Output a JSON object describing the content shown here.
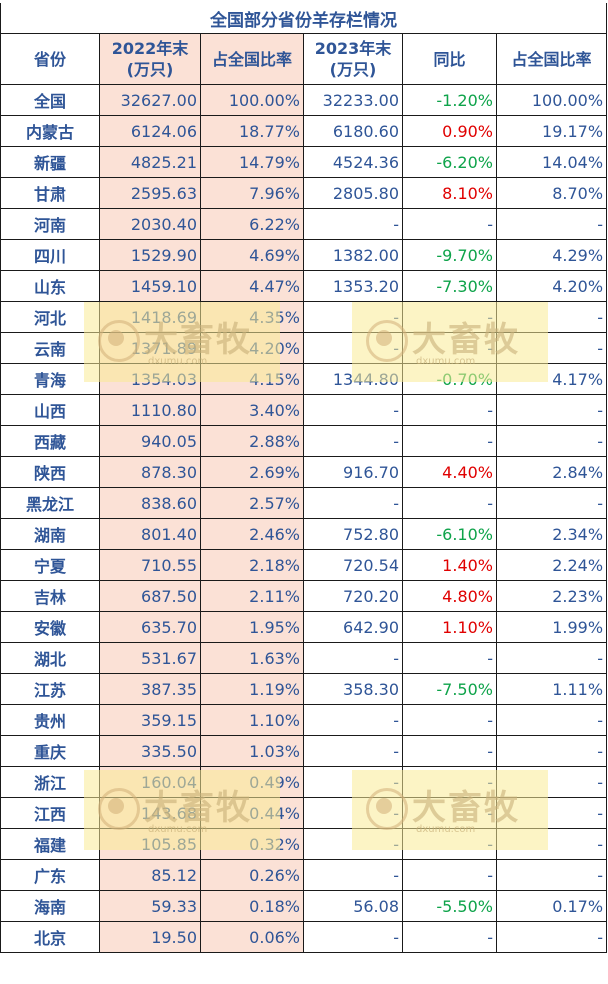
{
  "title": "全国部分省份羊存栏情况",
  "headers": [
    "省份",
    "2022年末\n(万只)",
    "占全国比率",
    "2023年末\n(万只)",
    "同比",
    "占全国比率"
  ],
  "rows": [
    {
      "province": "全国",
      "y2022": "32627.00",
      "share2022": "100.00%",
      "y2023": "32233.00",
      "yoy": "-1.20%",
      "share2023": "100.00%"
    },
    {
      "province": "内蒙古",
      "y2022": "6124.06",
      "share2022": "18.77%",
      "y2023": "6180.60",
      "yoy": "0.90%",
      "share2023": "19.17%"
    },
    {
      "province": "新疆",
      "y2022": "4825.21",
      "share2022": "14.79%",
      "y2023": "4524.36",
      "yoy": "-6.20%",
      "share2023": "14.04%"
    },
    {
      "province": "甘肃",
      "y2022": "2595.63",
      "share2022": "7.96%",
      "y2023": "2805.80",
      "yoy": "8.10%",
      "share2023": "8.70%"
    },
    {
      "province": "河南",
      "y2022": "2030.40",
      "share2022": "6.22%",
      "y2023": "-",
      "yoy": "-",
      "share2023": "-"
    },
    {
      "province": "四川",
      "y2022": "1529.90",
      "share2022": "4.69%",
      "y2023": "1382.00",
      "yoy": "-9.70%",
      "share2023": "4.29%"
    },
    {
      "province": "山东",
      "y2022": "1459.10",
      "share2022": "4.47%",
      "y2023": "1353.20",
      "yoy": "-7.30%",
      "share2023": "4.20%"
    },
    {
      "province": "河北",
      "y2022": "1418.69",
      "share2022": "4.35%",
      "y2023": "-",
      "yoy": "-",
      "share2023": "-"
    },
    {
      "province": "云南",
      "y2022": "1371.89",
      "share2022": "4.20%",
      "y2023": "-",
      "yoy": "-",
      "share2023": "-"
    },
    {
      "province": "青海",
      "y2022": "1354.03",
      "share2022": "4.15%",
      "y2023": "1344.80",
      "yoy": "-0.70%",
      "share2023": "4.17%"
    },
    {
      "province": "山西",
      "y2022": "1110.80",
      "share2022": "3.40%",
      "y2023": "-",
      "yoy": "-",
      "share2023": "-"
    },
    {
      "province": "西藏",
      "y2022": "940.05",
      "share2022": "2.88%",
      "y2023": "-",
      "yoy": "-",
      "share2023": "-"
    },
    {
      "province": "陕西",
      "y2022": "878.30",
      "share2022": "2.69%",
      "y2023": "916.70",
      "yoy": "4.40%",
      "share2023": "2.84%"
    },
    {
      "province": "黑龙江",
      "y2022": "838.60",
      "share2022": "2.57%",
      "y2023": "-",
      "yoy": "-",
      "share2023": "-"
    },
    {
      "province": "湖南",
      "y2022": "801.40",
      "share2022": "2.46%",
      "y2023": "752.80",
      "yoy": "-6.10%",
      "share2023": "2.34%"
    },
    {
      "province": "宁夏",
      "y2022": "710.55",
      "share2022": "2.18%",
      "y2023": "720.54",
      "yoy": "1.40%",
      "share2023": "2.24%"
    },
    {
      "province": "吉林",
      "y2022": "687.50",
      "share2022": "2.11%",
      "y2023": "720.20",
      "yoy": "4.80%",
      "share2023": "2.23%"
    },
    {
      "province": "安徽",
      "y2022": "635.70",
      "share2022": "1.95%",
      "y2023": "642.90",
      "yoy": "1.10%",
      "share2023": "1.99%"
    },
    {
      "province": "湖北",
      "y2022": "531.67",
      "share2022": "1.63%",
      "y2023": "-",
      "yoy": "-",
      "share2023": "-"
    },
    {
      "province": "江苏",
      "y2022": "387.35",
      "share2022": "1.19%",
      "y2023": "358.30",
      "yoy": "-7.50%",
      "share2023": "1.11%"
    },
    {
      "province": "贵州",
      "y2022": "359.15",
      "share2022": "1.10%",
      "y2023": "-",
      "yoy": "-",
      "share2023": "-"
    },
    {
      "province": "重庆",
      "y2022": "335.50",
      "share2022": "1.03%",
      "y2023": "-",
      "yoy": "-",
      "share2023": "-"
    },
    {
      "province": "浙江",
      "y2022": "160.04",
      "share2022": "0.49%",
      "y2023": "-",
      "yoy": "-",
      "share2023": "-"
    },
    {
      "province": "江西",
      "y2022": "143.68",
      "share2022": "0.44%",
      "y2023": "-",
      "yoy": "-",
      "share2023": "-"
    },
    {
      "province": "福建",
      "y2022": "105.85",
      "share2022": "0.32%",
      "y2023": "-",
      "yoy": "-",
      "share2023": "-"
    },
    {
      "province": "广东",
      "y2022": "85.12",
      "share2022": "0.26%",
      "y2023": "-",
      "yoy": "-",
      "share2023": "-"
    },
    {
      "province": "海南",
      "y2022": "59.33",
      "share2022": "0.18%",
      "y2023": "56.08",
      "yoy": "-5.50%",
      "share2023": "0.17%"
    },
    {
      "province": "北京",
      "y2022": "19.50",
      "share2022": "0.06%",
      "y2023": "-",
      "yoy": "-",
      "share2023": "-"
    }
  ],
  "watermark": {
    "brand": "大畜牧",
    "site": "dxumu.com"
  },
  "colors": {
    "text": "#2f5597",
    "peach": "#fbe1d6",
    "negative": "#0ea34a",
    "positive": "#e00000"
  }
}
